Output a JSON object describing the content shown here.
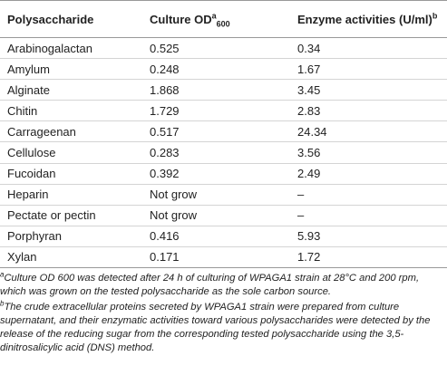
{
  "table": {
    "headers": [
      {
        "text": "Polysaccharide"
      },
      {
        "text": "Culture OD",
        "sup": "a",
        "sub": "600"
      },
      {
        "text": "Enzyme activities (U/ml)",
        "sup": "b"
      }
    ],
    "rows": [
      [
        "Arabinogalactan",
        "0.525",
        "0.34"
      ],
      [
        "Amylum",
        "0.248",
        "1.67"
      ],
      [
        "Alginate",
        "1.868",
        "3.45"
      ],
      [
        "Chitin",
        "1.729",
        "2.83"
      ],
      [
        "Carrageenan",
        "0.517",
        "24.34"
      ],
      [
        "Cellulose",
        "0.283",
        "3.56"
      ],
      [
        "Fucoidan",
        "0.392",
        "2.49"
      ],
      [
        "Heparin",
        "Not grow",
        "–"
      ],
      [
        "Pectate or pectin",
        "Not grow",
        "–"
      ],
      [
        "Porphyran",
        "0.416",
        "5.93"
      ],
      [
        "Xylan",
        "0.171",
        "1.72"
      ]
    ],
    "footnotes": [
      {
        "marker": "a",
        "text": "Culture OD 600 was detected after 24 h of culturing of WPAGA1 strain at 28°C and 200 rpm, which was grown on the tested polysaccharide as the sole carbon source."
      },
      {
        "marker": "b",
        "text": "The crude extracellular proteins secreted by WPAGA1 strain were prepared from culture supernatant, and their enzymatic activities toward various polysaccharides were detected by the release of the reducing sugar from the corresponding tested polysaccharide using the 3,5-dinitrosalicylic acid (DNS) method."
      }
    ]
  }
}
